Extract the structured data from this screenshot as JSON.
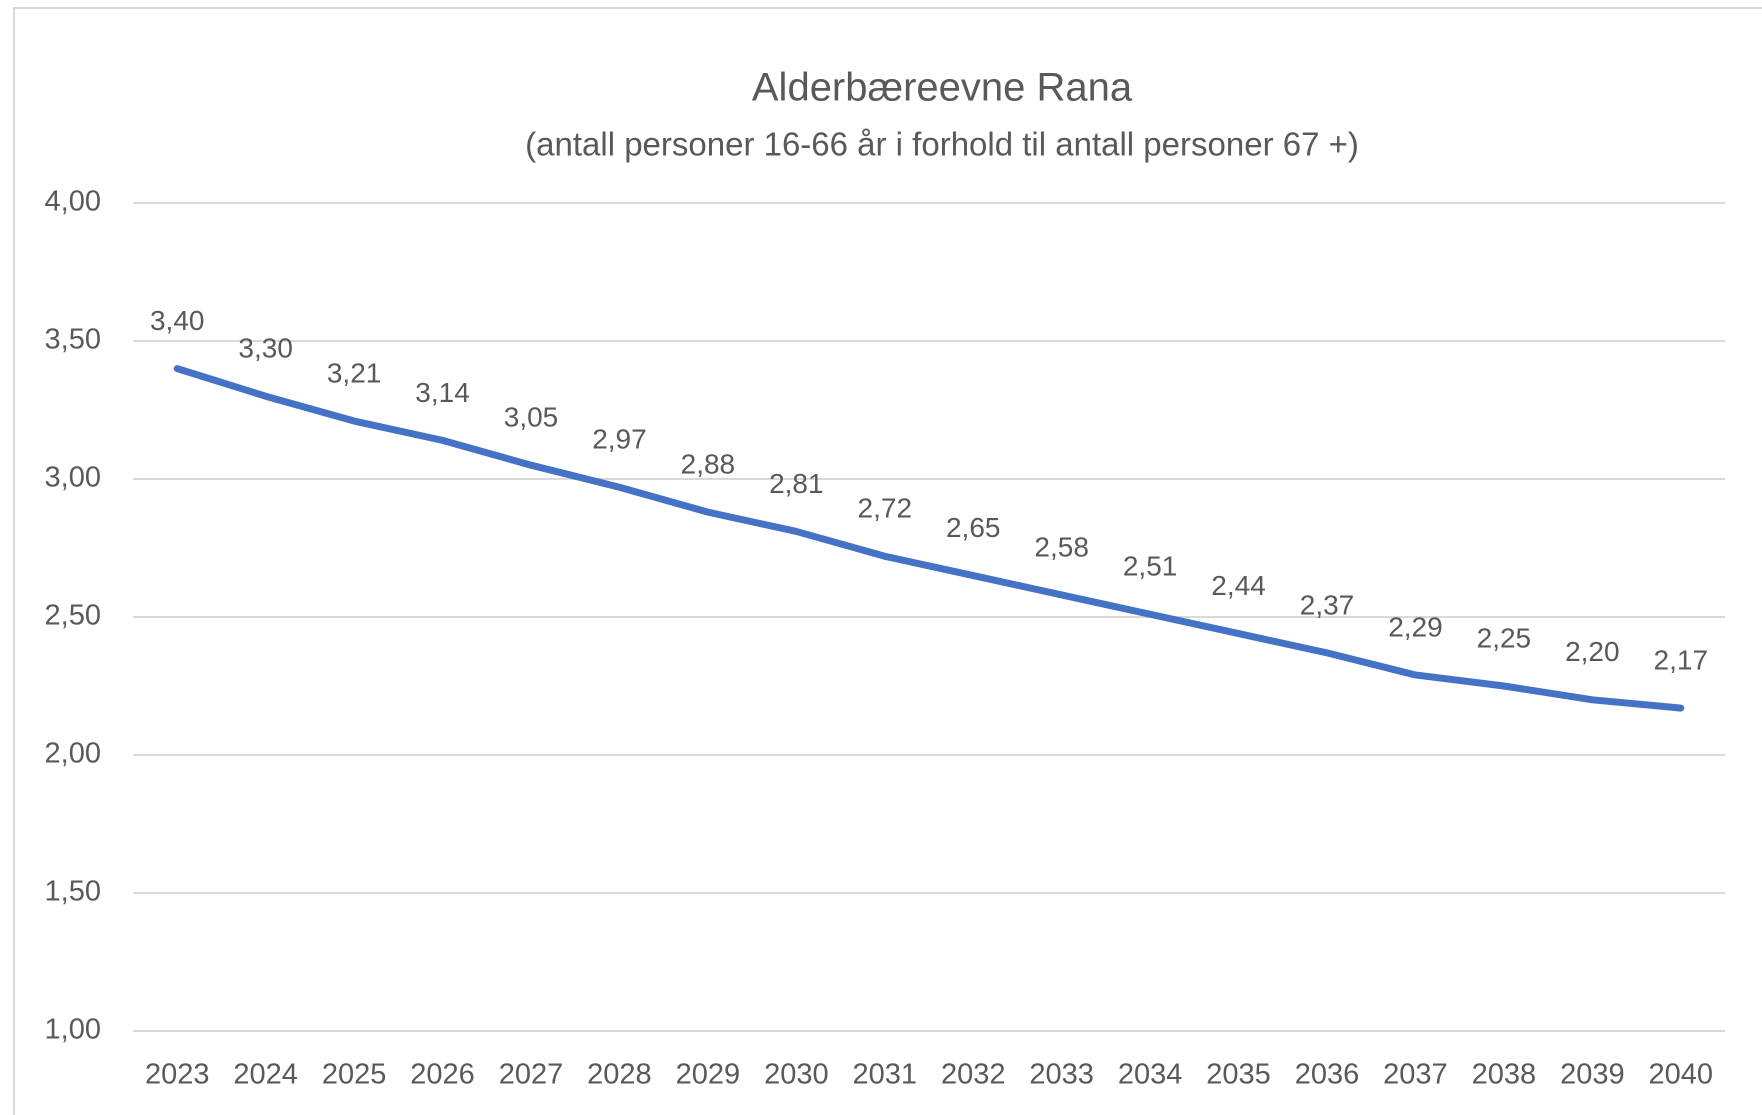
{
  "chart_data": {
    "type": "line",
    "title": "Alderbæreevne Rana",
    "subtitle": "(antall personer 16-66 år i forhold til antall personer 67 +)",
    "categories": [
      "2023",
      "2024",
      "2025",
      "2026",
      "2027",
      "2028",
      "2029",
      "2030",
      "2031",
      "2032",
      "2033",
      "2034",
      "2035",
      "2036",
      "2037",
      "2038",
      "2039",
      "2040"
    ],
    "series": [
      {
        "name": "Alderbæreevne Rana",
        "color": "#4472c4",
        "values": [
          3.4,
          3.3,
          3.21,
          3.14,
          3.05,
          2.97,
          2.88,
          2.81,
          2.72,
          2.65,
          2.58,
          2.51,
          2.44,
          2.37,
          2.29,
          2.25,
          2.2,
          2.17
        ],
        "value_labels": [
          "3,40",
          "3,30",
          "3,21",
          "3,14",
          "3,05",
          "2,97",
          "2,88",
          "2,81",
          "2,72",
          "2,65",
          "2,58",
          "2,51",
          "2,44",
          "2,37",
          "2,29",
          "2,25",
          "2,20",
          "2,17"
        ]
      }
    ],
    "ylim": [
      1,
      4
    ],
    "yticks": [
      {
        "value": 1,
        "label": "1,00"
      },
      {
        "value": 1.5,
        "label": "1,50"
      },
      {
        "value": 2,
        "label": "2,00"
      },
      {
        "value": 2.5,
        "label": "2,50"
      },
      {
        "value": 3,
        "label": "3,00"
      },
      {
        "value": 3.5,
        "label": "3,50"
      },
      {
        "value": 4,
        "label": "4,00"
      }
    ],
    "grid": true
  }
}
